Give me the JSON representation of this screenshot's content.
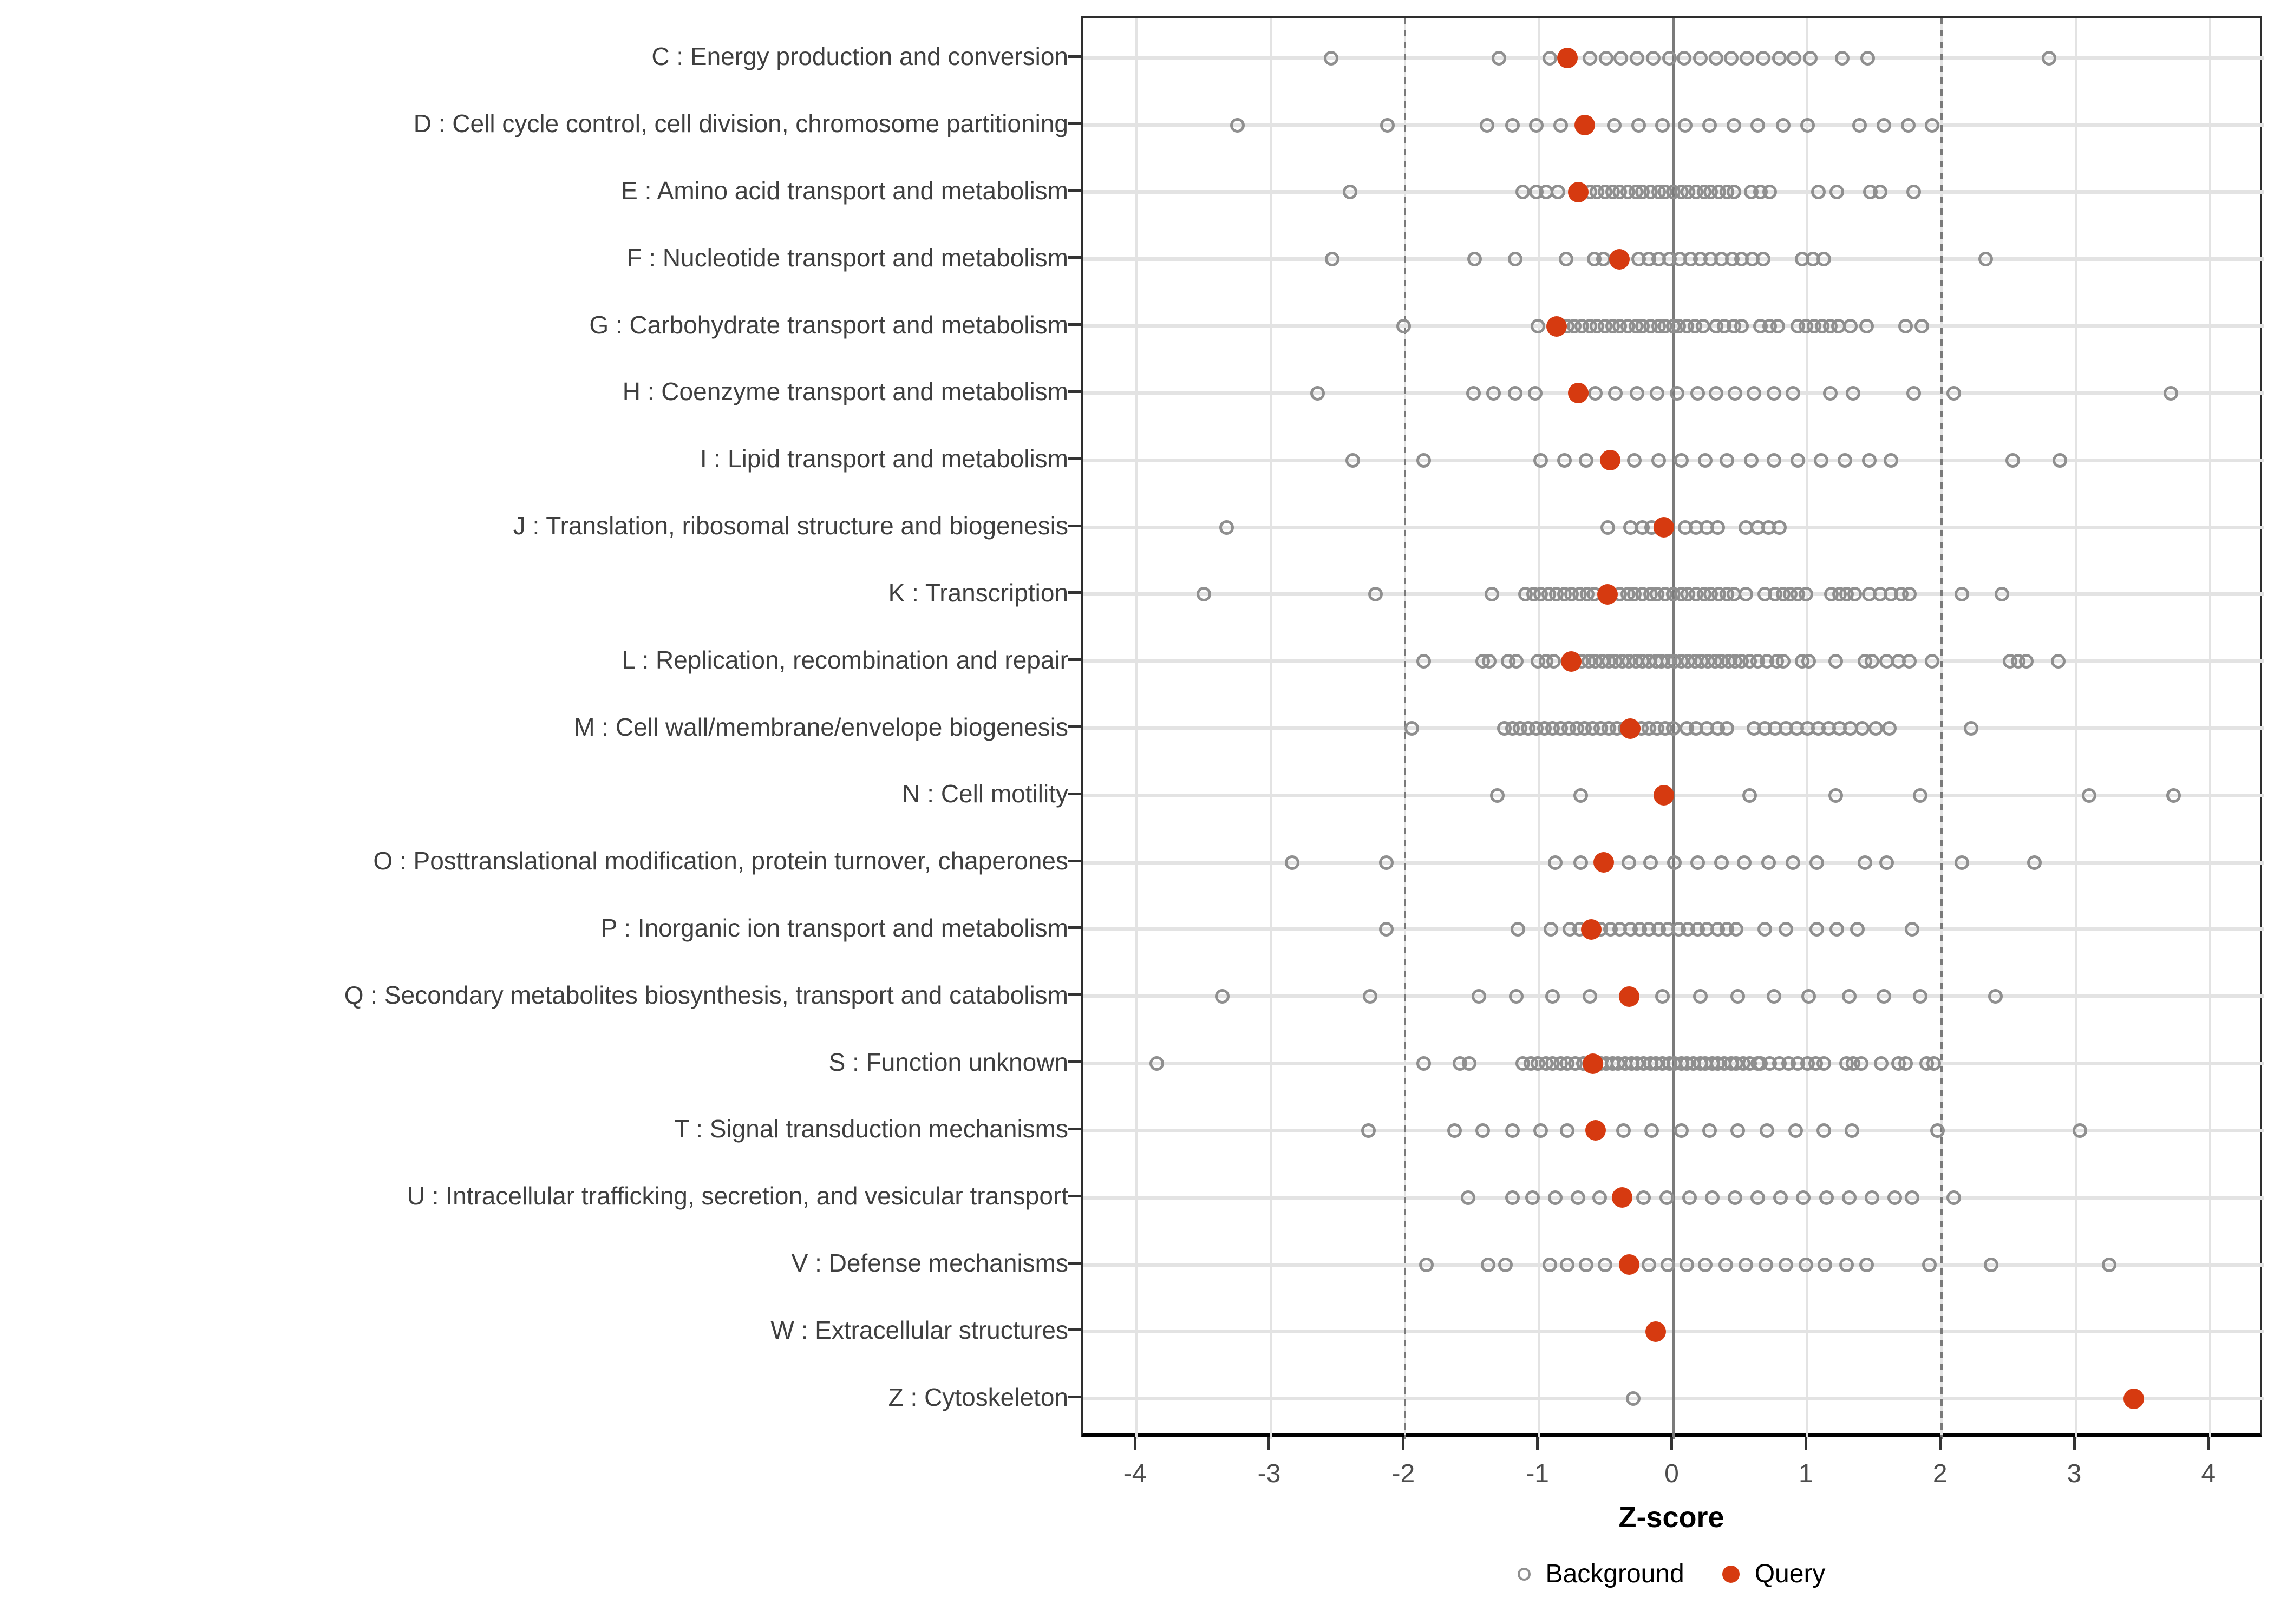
{
  "chart_data": {
    "type": "scatter",
    "title": "",
    "xlabel": "Z-score",
    "xlim": [
      -4.4,
      4.4
    ],
    "x_ticks": [
      -4,
      -3,
      -2,
      -1,
      0,
      1,
      2,
      3,
      4
    ],
    "grid": true,
    "legend_position": "bottom",
    "reference_lines": {
      "solid_at": 0,
      "dashed_at": [
        -2,
        2
      ]
    },
    "colors": {
      "query": "#d63a10",
      "background_stroke": "#8f8f8f",
      "grid": "#e3e3e3",
      "reference": "#7a7a7a",
      "tick_text": "#4d4d4d",
      "category_text": "#3f3f3f"
    },
    "legend": {
      "background_label": "Background",
      "query_label": "Query"
    },
    "categories": [
      {
        "label": "C : Energy production and conversion",
        "query": -0.79,
        "background": [
          -2.55,
          -1.3,
          -0.92,
          -0.62,
          -0.5,
          -0.39,
          -0.27,
          -0.15,
          -0.03,
          0.08,
          0.2,
          0.32,
          0.43,
          0.55,
          0.67,
          0.79,
          0.9,
          1.02,
          1.26,
          1.45,
          2.8
        ]
      },
      {
        "label": "D : Cell cycle control, cell division, chromosome partitioning",
        "query": -0.66,
        "background": [
          -3.25,
          -2.13,
          -1.39,
          -1.2,
          -1.02,
          -0.84,
          -0.44,
          -0.26,
          -0.08,
          0.09,
          0.27,
          0.45,
          0.63,
          0.82,
          1.0,
          1.39,
          1.57,
          1.75,
          1.93
        ]
      },
      {
        "label": "E : Amino acid transport and metabolism",
        "query": -0.71,
        "background": [
          -2.41,
          -1.12,
          -1.02,
          -0.95,
          -0.86,
          -0.62,
          -0.57,
          -0.51,
          -0.45,
          -0.4,
          -0.34,
          -0.28,
          -0.23,
          -0.17,
          -0.11,
          -0.06,
          0.0,
          0.06,
          0.11,
          0.17,
          0.23,
          0.28,
          0.34,
          0.4,
          0.45,
          0.58,
          0.65,
          0.72,
          1.08,
          1.22,
          1.47,
          1.54,
          1.79
        ]
      },
      {
        "label": "F : Nucleotide transport and metabolism",
        "query": -0.4,
        "background": [
          -2.54,
          -1.48,
          -1.18,
          -0.8,
          -0.59,
          -0.52,
          -0.26,
          -0.18,
          -0.11,
          -0.03,
          0.05,
          0.13,
          0.2,
          0.28,
          0.36,
          0.44,
          0.51,
          0.59,
          0.67,
          0.96,
          1.04,
          1.12,
          2.33
        ]
      },
      {
        "label": "G : Carbohydrate transport and metabolism",
        "query": -0.87,
        "background": [
          -2.01,
          -1.01,
          -0.79,
          -0.74,
          -0.68,
          -0.62,
          -0.57,
          -0.51,
          -0.45,
          -0.4,
          -0.34,
          -0.28,
          -0.23,
          -0.17,
          -0.11,
          -0.06,
          0.0,
          0.04,
          0.1,
          0.16,
          0.22,
          0.32,
          0.38,
          0.45,
          0.51,
          0.65,
          0.72,
          0.78,
          0.93,
          0.99,
          1.05,
          1.11,
          1.17,
          1.23,
          1.32,
          1.44,
          1.73,
          1.85
        ]
      },
      {
        "label": "H : Coenzyme transport and metabolism",
        "query": -0.71,
        "background": [
          -2.65,
          -1.49,
          -1.34,
          -1.18,
          -1.03,
          -0.58,
          -0.43,
          -0.27,
          -0.12,
          0.03,
          0.18,
          0.32,
          0.46,
          0.6,
          0.75,
          0.89,
          1.17,
          1.34,
          1.79,
          2.09,
          3.71
        ]
      },
      {
        "label": "I : Lipid transport and metabolism",
        "query": -0.47,
        "background": [
          -2.39,
          -1.86,
          -0.99,
          -0.81,
          -0.65,
          -0.29,
          -0.11,
          0.06,
          0.24,
          0.4,
          0.58,
          0.75,
          0.93,
          1.1,
          1.28,
          1.46,
          1.62,
          2.53,
          2.88
        ]
      },
      {
        "label": "J : Translation, ribosomal structure and biogenesis",
        "query": -0.07,
        "background": [
          -3.33,
          -0.49,
          -0.32,
          -0.23,
          -0.16,
          0.09,
          0.17,
          0.25,
          0.33,
          0.54,
          0.63,
          0.71,
          0.79
        ]
      },
      {
        "label": "K : Transcription",
        "query": -0.49,
        "background": [
          -3.5,
          -2.22,
          -1.35,
          -1.1,
          -1.04,
          -0.99,
          -0.93,
          -0.87,
          -0.81,
          -0.76,
          -0.7,
          -0.64,
          -0.59,
          -0.4,
          -0.34,
          -0.29,
          -0.23,
          -0.17,
          -0.12,
          -0.06,
          0.0,
          0.06,
          0.11,
          0.17,
          0.23,
          0.28,
          0.34,
          0.4,
          0.45,
          0.54,
          0.68,
          0.76,
          0.82,
          0.87,
          0.93,
          0.99,
          1.18,
          1.24,
          1.29,
          1.35,
          1.46,
          1.54,
          1.62,
          1.7,
          1.76,
          2.15,
          2.45
        ]
      },
      {
        "label": "L : Replication, recombination and repair",
        "query": -0.76,
        "background": [
          -1.86,
          -1.42,
          -1.37,
          -1.23,
          -1.17,
          -1.01,
          -0.95,
          -0.89,
          -0.68,
          -0.63,
          -0.58,
          -0.53,
          -0.48,
          -0.43,
          -0.38,
          -0.33,
          -0.28,
          -0.23,
          -0.18,
          -0.13,
          -0.09,
          -0.04,
          0.01,
          0.06,
          0.11,
          0.16,
          0.21,
          0.26,
          0.31,
          0.36,
          0.41,
          0.46,
          0.51,
          0.57,
          0.63,
          0.7,
          0.77,
          0.82,
          0.96,
          1.01,
          1.21,
          1.43,
          1.48,
          1.59,
          1.68,
          1.76,
          1.93,
          2.51,
          2.57,
          2.63,
          2.87
        ]
      },
      {
        "label": "M : Cell wall/membrane/envelope biogenesis",
        "query": -0.32,
        "background": [
          -1.95,
          -1.26,
          -1.2,
          -1.14,
          -1.08,
          -1.02,
          -0.96,
          -0.9,
          -0.84,
          -0.78,
          -0.72,
          -0.66,
          -0.6,
          -0.54,
          -0.48,
          -0.42,
          -0.36,
          -0.3,
          -0.24,
          -0.18,
          -0.12,
          -0.06,
          0.0,
          0.1,
          0.17,
          0.25,
          0.33,
          0.4,
          0.6,
          0.68,
          0.76,
          0.84,
          0.92,
          1.0,
          1.08,
          1.16,
          1.24,
          1.32,
          1.41,
          1.51,
          1.61,
          2.22
        ]
      },
      {
        "label": "N : Cell motility",
        "query": -0.07,
        "background": [
          -1.31,
          -0.69,
          0.57,
          1.21,
          1.84,
          3.1,
          3.73
        ]
      },
      {
        "label": "O : Posttranslational modification, protein turnover, chaperones",
        "query": -0.52,
        "background": [
          -2.84,
          -2.14,
          -0.88,
          -0.69,
          -0.33,
          -0.17,
          0.01,
          0.18,
          0.36,
          0.53,
          0.71,
          0.89,
          1.07,
          1.43,
          1.59,
          2.15,
          2.69
        ]
      },
      {
        "label": "P : Inorganic ion transport and metabolism",
        "query": -0.61,
        "background": [
          -2.14,
          -1.16,
          -0.91,
          -0.77,
          -0.7,
          -0.54,
          -0.47,
          -0.4,
          -0.32,
          -0.25,
          -0.18,
          -0.11,
          -0.04,
          0.04,
          0.11,
          0.18,
          0.25,
          0.33,
          0.4,
          0.47,
          0.68,
          0.84,
          1.07,
          1.22,
          1.37,
          1.78
        ]
      },
      {
        "label": "Q : Secondary metabolites biosynthesis, transport and catabolism",
        "query": -0.33,
        "background": [
          -3.36,
          -2.26,
          -1.45,
          -1.17,
          -0.9,
          -0.62,
          -0.08,
          0.2,
          0.48,
          0.75,
          1.01,
          1.31,
          1.57,
          1.84,
          2.4
        ]
      },
      {
        "label": "S : Function unknown",
        "query": -0.6,
        "background": [
          -3.85,
          -1.86,
          -1.59,
          -1.52,
          -1.12,
          -1.06,
          -1.01,
          -0.95,
          -0.9,
          -0.84,
          -0.79,
          -0.73,
          -0.67,
          -0.54,
          -0.5,
          -0.45,
          -0.41,
          -0.36,
          -0.31,
          -0.27,
          -0.22,
          -0.17,
          -0.13,
          -0.08,
          -0.03,
          0.01,
          0.06,
          0.1,
          0.15,
          0.2,
          0.24,
          0.29,
          0.33,
          0.38,
          0.43,
          0.47,
          0.52,
          0.57,
          0.63,
          0.65,
          0.72,
          0.79,
          0.86,
          0.93,
          1.0,
          1.06,
          1.12,
          1.29,
          1.34,
          1.4,
          1.55,
          1.68,
          1.73,
          1.89,
          1.94
        ]
      },
      {
        "label": "T : Signal transduction mechanisms",
        "query": -0.58,
        "background": [
          -2.27,
          -1.63,
          -1.42,
          -1.2,
          -0.99,
          -0.79,
          -0.37,
          -0.16,
          0.06,
          0.27,
          0.48,
          0.7,
          0.91,
          1.12,
          1.33,
          1.97,
          3.03
        ]
      },
      {
        "label": "U : Intracellular trafficking, secretion, and vesicular transport",
        "query": -0.38,
        "background": [
          -1.53,
          -1.2,
          -1.05,
          -0.88,
          -0.71,
          -0.55,
          -0.22,
          -0.05,
          0.12,
          0.29,
          0.46,
          0.63,
          0.8,
          0.97,
          1.14,
          1.31,
          1.48,
          1.65,
          1.78,
          2.09
        ]
      },
      {
        "label": "V : Defense mechanisms",
        "query": -0.33,
        "background": [
          -1.84,
          -1.38,
          -1.25,
          -0.92,
          -0.79,
          -0.65,
          -0.51,
          -0.18,
          -0.04,
          0.1,
          0.24,
          0.39,
          0.54,
          0.69,
          0.84,
          0.99,
          1.13,
          1.29,
          1.44,
          1.91,
          2.37,
          3.25
        ]
      },
      {
        "label": "W : Extracellular structures",
        "query": -0.13,
        "background": []
      },
      {
        "label": "Z : Cytoskeleton",
        "query": 3.43,
        "background": [
          -0.3
        ]
      }
    ]
  }
}
